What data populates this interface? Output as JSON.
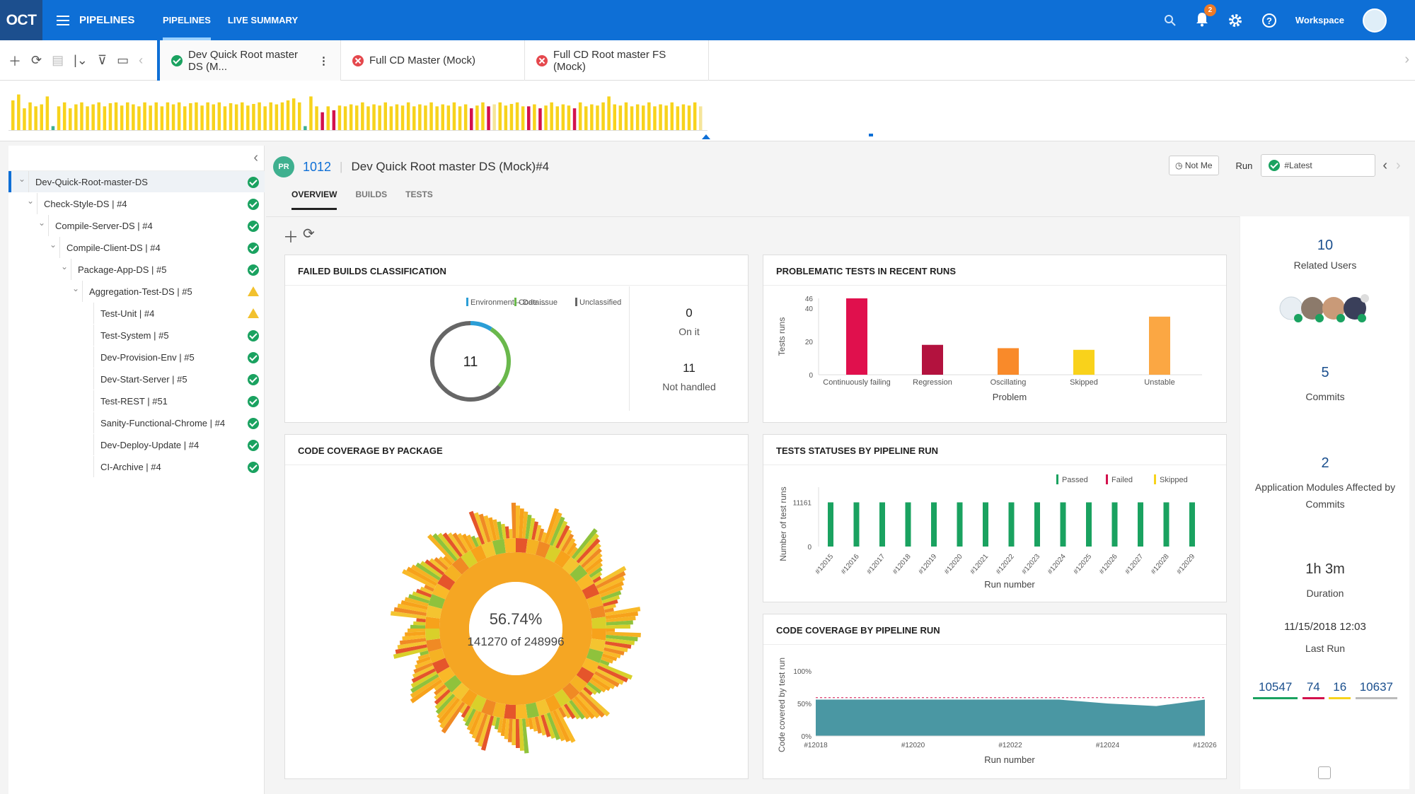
{
  "topbar": {
    "logo": "OCT",
    "menu_label": "PIPELINES",
    "tabs": [
      {
        "label": "PIPELINES"
      },
      {
        "label": "LIVE SUMMARY"
      }
    ],
    "notification_count": "2",
    "workspace_label": "Workspace"
  },
  "pipeline_tabs": [
    {
      "label": "Dev Quick Root master DS (M...",
      "status": "passed"
    },
    {
      "label": "Full CD Master (Mock)",
      "status": "failed"
    },
    {
      "label": "Full CD Root master FS (Mock)",
      "status": "failed"
    }
  ],
  "timeline": {
    "bars": [
      {
        "c": "y",
        "h": 0.75
      },
      {
        "c": "y",
        "h": 0.9
      },
      {
        "c": "y",
        "h": 0.55
      },
      {
        "c": "y",
        "h": 0.7
      },
      {
        "c": "y",
        "h": 0.6
      },
      {
        "c": "y",
        "h": 0.65
      },
      {
        "c": "y",
        "h": 0.85
      },
      {
        "c": "g",
        "h": 0.1
      },
      {
        "c": "y",
        "h": 0.6
      },
      {
        "c": "y",
        "h": 0.7
      },
      {
        "c": "y",
        "h": 0.55
      },
      {
        "c": "y",
        "h": 0.65
      },
      {
        "c": "y",
        "h": 0.7
      },
      {
        "c": "y",
        "h": 0.6
      },
      {
        "c": "y",
        "h": 0.65
      },
      {
        "c": "y",
        "h": 0.7
      },
      {
        "c": "y",
        "h": 0.6
      },
      {
        "c": "y",
        "h": 0.68
      },
      {
        "c": "y",
        "h": 0.7
      },
      {
        "c": "y",
        "h": 0.62
      },
      {
        "c": "y",
        "h": 0.7
      },
      {
        "c": "y",
        "h": 0.65
      },
      {
        "c": "y",
        "h": 0.6
      },
      {
        "c": "y",
        "h": 0.7
      },
      {
        "c": "y",
        "h": 0.62
      },
      {
        "c": "y",
        "h": 0.7
      },
      {
        "c": "y",
        "h": 0.6
      },
      {
        "c": "y",
        "h": 0.7
      },
      {
        "c": "y",
        "h": 0.65
      },
      {
        "c": "y",
        "h": 0.7
      },
      {
        "c": "y",
        "h": 0.6
      },
      {
        "c": "y",
        "h": 0.68
      },
      {
        "c": "y",
        "h": 0.7
      },
      {
        "c": "y",
        "h": 0.62
      },
      {
        "c": "y",
        "h": 0.7
      },
      {
        "c": "y",
        "h": 0.65
      },
      {
        "c": "y",
        "h": 0.7
      },
      {
        "c": "y",
        "h": 0.6
      },
      {
        "c": "y",
        "h": 0.68
      },
      {
        "c": "y",
        "h": 0.65
      },
      {
        "c": "y",
        "h": 0.7
      },
      {
        "c": "y",
        "h": 0.62
      },
      {
        "c": "y",
        "h": 0.66
      },
      {
        "c": "y",
        "h": 0.7
      },
      {
        "c": "y",
        "h": 0.6
      },
      {
        "c": "y",
        "h": 0.7
      },
      {
        "c": "y",
        "h": 0.65
      },
      {
        "c": "y",
        "h": 0.7
      },
      {
        "c": "y",
        "h": 0.75
      },
      {
        "c": "y",
        "h": 0.8
      },
      {
        "c": "y",
        "h": 0.7
      },
      {
        "c": "g",
        "h": 0.1
      },
      {
        "c": "y",
        "h": 0.85
      },
      {
        "c": "y",
        "h": 0.6
      },
      {
        "c": "r",
        "h": 0.45
      },
      {
        "c": "y",
        "h": 0.6
      },
      {
        "c": "r",
        "h": 0.5
      },
      {
        "c": "y",
        "h": 0.62
      },
      {
        "c": "y",
        "h": 0.6
      },
      {
        "c": "y",
        "h": 0.65
      },
      {
        "c": "y",
        "h": 0.62
      },
      {
        "c": "y",
        "h": 0.7
      },
      {
        "c": "y",
        "h": 0.6
      },
      {
        "c": "y",
        "h": 0.65
      },
      {
        "c": "y",
        "h": 0.62
      },
      {
        "c": "y",
        "h": 0.7
      },
      {
        "c": "y",
        "h": 0.6
      },
      {
        "c": "y",
        "h": 0.65
      },
      {
        "c": "y",
        "h": 0.62
      },
      {
        "c": "y",
        "h": 0.7
      },
      {
        "c": "y",
        "h": 0.6
      },
      {
        "c": "y",
        "h": 0.65
      },
      {
        "c": "y",
        "h": 0.62
      },
      {
        "c": "y",
        "h": 0.7
      },
      {
        "c": "y",
        "h": 0.6
      },
      {
        "c": "y",
        "h": 0.65
      },
      {
        "c": "y",
        "h": 0.62
      },
      {
        "c": "y",
        "h": 0.7
      },
      {
        "c": "y",
        "h": 0.6
      },
      {
        "c": "y",
        "h": 0.65
      },
      {
        "c": "r",
        "h": 0.55
      },
      {
        "c": "y",
        "h": 0.62
      },
      {
        "c": "y",
        "h": 0.7
      },
      {
        "c": "r",
        "h": 0.6
      },
      {
        "c": "s",
        "h": 0.65
      },
      {
        "c": "y",
        "h": 0.7
      },
      {
        "c": "y",
        "h": 0.62
      },
      {
        "c": "y",
        "h": 0.66
      },
      {
        "c": "y",
        "h": 0.7
      },
      {
        "c": "y",
        "h": 0.6
      },
      {
        "c": "r",
        "h": 0.6
      },
      {
        "c": "y",
        "h": 0.65
      },
      {
        "c": "r",
        "h": 0.55
      },
      {
        "c": "y",
        "h": 0.62
      },
      {
        "c": "y",
        "h": 0.7
      },
      {
        "c": "y",
        "h": 0.6
      },
      {
        "c": "y",
        "h": 0.65
      },
      {
        "c": "y",
        "h": 0.62
      },
      {
        "c": "r",
        "h": 0.55
      },
      {
        "c": "y",
        "h": 0.7
      },
      {
        "c": "y",
        "h": 0.6
      },
      {
        "c": "y",
        "h": 0.65
      },
      {
        "c": "y",
        "h": 0.62
      },
      {
        "c": "y",
        "h": 0.7
      },
      {
        "c": "y",
        "h": 0.85
      },
      {
        "c": "y",
        "h": 0.65
      },
      {
        "c": "y",
        "h": 0.62
      },
      {
        "c": "y",
        "h": 0.7
      },
      {
        "c": "y",
        "h": 0.6
      },
      {
        "c": "y",
        "h": 0.65
      },
      {
        "c": "y",
        "h": 0.62
      },
      {
        "c": "y",
        "h": 0.7
      },
      {
        "c": "y",
        "h": 0.6
      },
      {
        "c": "y",
        "h": 0.65
      },
      {
        "c": "y",
        "h": 0.62
      },
      {
        "c": "y",
        "h": 0.7
      },
      {
        "c": "y",
        "h": 0.6
      },
      {
        "c": "y",
        "h": 0.65
      },
      {
        "c": "y",
        "h": 0.62
      },
      {
        "c": "y",
        "h": 0.7
      },
      {
        "c": "s",
        "h": 0.6
      }
    ]
  },
  "tree": {
    "items": [
      {
        "label": "Dev-Quick-Root-master-DS",
        "level": 0,
        "status": "passed"
      },
      {
        "label": "Check-Style-DS | #4",
        "level": 1,
        "status": "passed"
      },
      {
        "label": "Compile-Server-DS | #4",
        "level": 2,
        "status": "passed"
      },
      {
        "label": "Compile-Client-DS | #4",
        "level": 3,
        "status": "passed"
      },
      {
        "label": "Package-App-DS | #5",
        "level": 4,
        "status": "passed"
      },
      {
        "label": "Aggregation-Test-DS | #5",
        "level": 5,
        "status": "warning"
      },
      {
        "label": "Test-Unit | #4",
        "level": 6,
        "status": "warning"
      },
      {
        "label": "Test-System | #5",
        "level": 6,
        "status": "passed"
      },
      {
        "label": "Dev-Provision-Env | #5",
        "level": 6,
        "status": "passed"
      },
      {
        "label": "Dev-Start-Server | #5",
        "level": 6,
        "status": "passed"
      },
      {
        "label": "Test-REST | #51",
        "level": 6,
        "status": "passed"
      },
      {
        "label": "Sanity-Functional-Chrome | #4",
        "level": 6,
        "status": "passed"
      },
      {
        "label": "Dev-Deploy-Update | #4",
        "level": 6,
        "status": "passed"
      },
      {
        "label": "CI-Archive | #4",
        "level": 6,
        "status": "passed"
      }
    ]
  },
  "header": {
    "pr_badge": "PR",
    "pr_number": "1012",
    "title": "Dev Quick Root master DS (Mock)#4",
    "not_me": "Not Me",
    "run_label": "Run",
    "run_value": "#Latest"
  },
  "subtabs": [
    {
      "label": "OVERVIEW"
    },
    {
      "label": "BUILDS"
    },
    {
      "label": "TESTS"
    }
  ],
  "widgets": {
    "failed_builds": {
      "title": "FAILED BUILDS CLASSIFICATION",
      "legend": [
        "Environment – Data...",
        "Code issue",
        "Unclassified"
      ],
      "total": "11",
      "on_it_value": "0",
      "on_it_label": "On it",
      "not_handled_value": "11",
      "not_handled_label": "Not handled"
    },
    "problematic": {
      "title": "PROBLEMATIC TESTS IN RECENT RUNS"
    },
    "coverage_pkg": {
      "title": "CODE COVERAGE BY PACKAGE",
      "percent": "56.74%",
      "covered": "141270 of 248996"
    },
    "statuses": {
      "title": "TESTS STATUSES BY PIPELINE RUN"
    },
    "coverage_run": {
      "title": "CODE COVERAGE BY PIPELINE RUN"
    }
  },
  "stats": {
    "related_users_value": "10",
    "related_users_label": "Related Users",
    "commits_value": "5",
    "commits_label": "Commits",
    "modules_value": "2",
    "modules_label": "Application Modules Affected by Commits",
    "duration_value": "1h 3m",
    "duration_label": "Duration",
    "last_run_value": "11/15/2018 12:03",
    "last_run_label": "Last Run",
    "test_counts": [
      "10547",
      "74",
      "16",
      "10637"
    ]
  },
  "colors": {
    "brand": "#0e6fd6",
    "passed": "#1aa260",
    "failed": "#d3114c",
    "skipped": "#f7d31c",
    "unstable": "#fba743"
  },
  "chart_data": [
    {
      "type": "pie",
      "title": "FAILED BUILDS CLASSIFICATION",
      "categories": [
        "Environment – Data...",
        "Code issue",
        "Unclassified"
      ],
      "values": [
        1,
        3,
        7
      ],
      "center_label": "11"
    },
    {
      "type": "bar",
      "title": "PROBLEMATIC TESTS IN RECENT RUNS",
      "categories": [
        "Continuously failing",
        "Regression",
        "Oscillating",
        "Skipped",
        "Unstable"
      ],
      "values": [
        46,
        18,
        16,
        15,
        35
      ],
      "colors": [
        "#e0104d",
        "#b3123e",
        "#f98a2a",
        "#f9d21b",
        "#fba743"
      ],
      "xlabel": "Problem",
      "ylabel": "Tests runs",
      "yticks": [
        "0",
        "20",
        "40",
        "46"
      ],
      "ylim": [
        0,
        46
      ]
    },
    {
      "type": "bar",
      "title": "TESTS STATUSES BY PIPELINE RUN",
      "categories": [
        "#12015",
        "#12016",
        "#12017",
        "#12018",
        "#12019",
        "#12020",
        "#12021",
        "#12022",
        "#12023",
        "#12024",
        "#12025",
        "#12026",
        "#12027",
        "#12028",
        "#12029"
      ],
      "series": [
        {
          "name": "Passed",
          "values": [
            11161,
            11161,
            11161,
            11161,
            11161,
            11161,
            11161,
            11161,
            11161,
            11161,
            11161,
            11161,
            11161,
            11161,
            11161
          ]
        },
        {
          "name": "Failed",
          "values": [
            0,
            0,
            0,
            0,
            0,
            0,
            0,
            0,
            0,
            0,
            0,
            0,
            0,
            0,
            0
          ]
        },
        {
          "name": "Skipped",
          "values": [
            0,
            0,
            0,
            0,
            0,
            0,
            0,
            0,
            0,
            0,
            0,
            0,
            0,
            0,
            0
          ]
        }
      ],
      "xlabel": "Run number",
      "ylabel": "Number of test runs",
      "yticks": [
        "0",
        "11161"
      ],
      "ylim": [
        0,
        12500
      ]
    },
    {
      "type": "area",
      "title": "CODE COVERAGE BY PIPELINE RUN",
      "x": [
        "#12018",
        "#12019",
        "#12020",
        "#12021",
        "#12022",
        "#12023",
        "#12024",
        "#12025",
        "#12026"
      ],
      "values": [
        56,
        56,
        56,
        56,
        56,
        56,
        50,
        46,
        56
      ],
      "threshold": 59,
      "xticks": [
        "#12018",
        "#12020",
        "#12022",
        "#12024",
        "#12026"
      ],
      "yticks": [
        "0%",
        "50%",
        "100%"
      ],
      "xlabel": "Run number",
      "ylabel": "Code covered by test run",
      "ylim": [
        0,
        100
      ]
    }
  ]
}
